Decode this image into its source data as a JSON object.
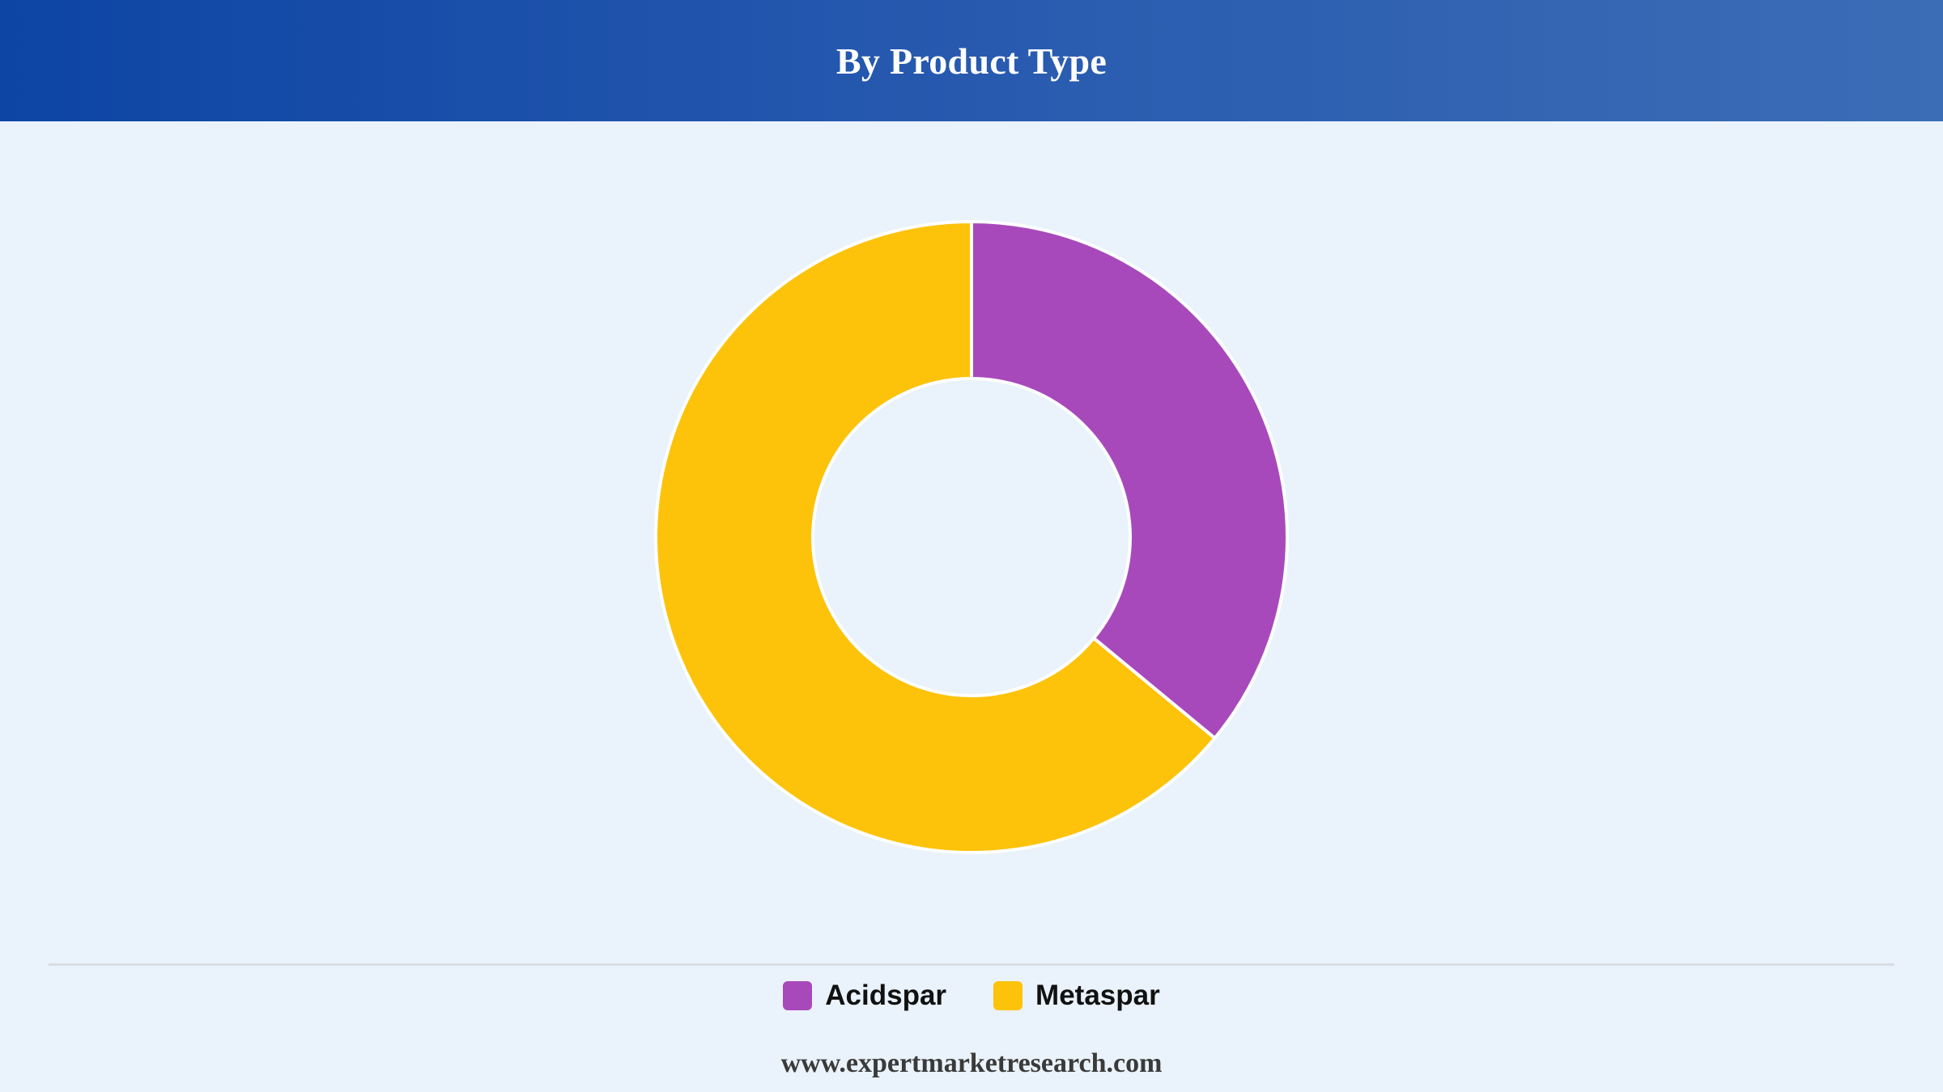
{
  "header": {
    "title": "By Product Type"
  },
  "chart_data": {
    "type": "pie",
    "style": "donut",
    "title": "By Product Type",
    "categories": [
      "Acidspar",
      "Metaspar"
    ],
    "values": [
      36,
      64
    ],
    "unit": "%",
    "colors": [
      "#a849bb",
      "#fdc20a"
    ],
    "legend_position": "bottom",
    "data_labels": false
  },
  "legend": {
    "items": [
      {
        "label": "Acidspar",
        "color": "#a849bb"
      },
      {
        "label": "Metaspar",
        "color": "#fdc20a"
      }
    ]
  },
  "footer": {
    "source": "www.expertmarketresearch.com"
  }
}
